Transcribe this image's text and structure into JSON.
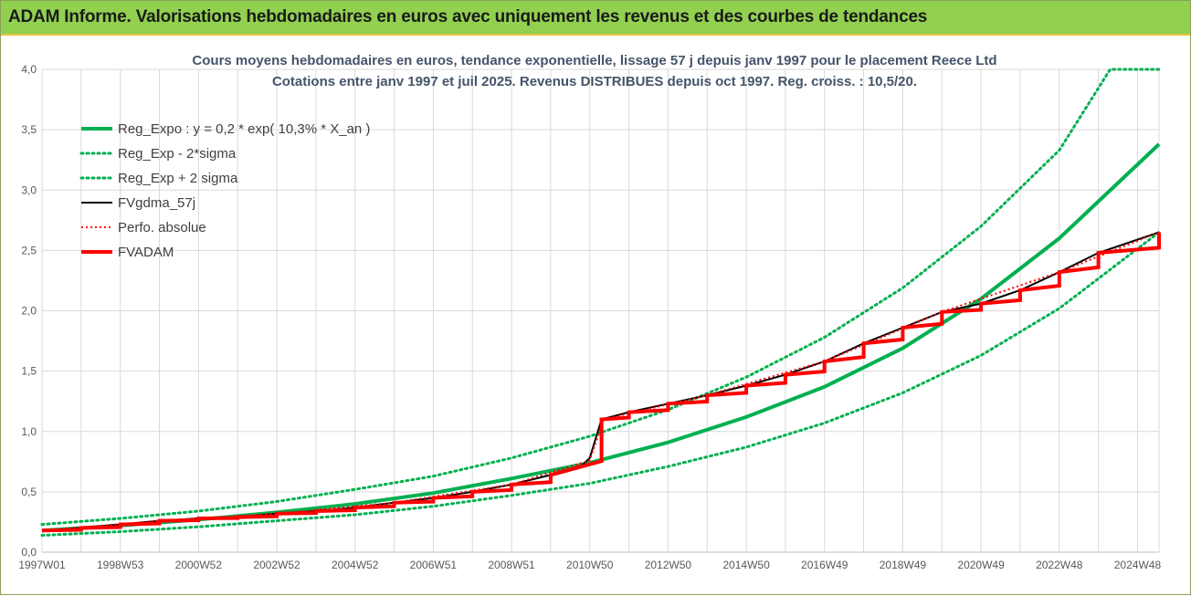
{
  "window": {
    "title": "ADAM Informe. Valorisations hebdomadaires en euros avec uniquement les revenus et des courbes de tendances"
  },
  "colors": {
    "titlebar": "#92d050",
    "green": "#00b050",
    "black": "#000000",
    "red": "#ff0000",
    "grid": "#d9d9d9"
  },
  "chart_data": {
    "type": "line",
    "title_lines": [
      "Cours moyens hebdomadaires en euros, tendance exponentielle, lissage 57 j depuis janv 1997 pour le placement Reece Ltd",
      "Cotations entre janv 1997 et juil 2025. Revenus DISTRIBUES depuis oct 1997. Reg. croiss. : 10,5/20."
    ],
    "x_tick_labels": [
      "1997W01",
      "1998W53",
      "2000W52",
      "2002W52",
      "2004W52",
      "2006W51",
      "2008W51",
      "2010W50",
      "2012W50",
      "2014W50",
      "2016W49",
      "2018W49",
      "2020W49",
      "2022W48",
      "2024W48"
    ],
    "y_tick_labels": [
      "0,0",
      "0,5",
      "1,0",
      "1,5",
      "2,0",
      "2,5",
      "3,0",
      "3,5",
      "4,0"
    ],
    "ylim": [
      0,
      4
    ],
    "xlim": [
      1997.0,
      2025.55
    ],
    "grid": true,
    "legend_position": "top-left",
    "series": [
      {
        "name": "Reg_Expo : y = 0,2 * exp( 10,3% *  X_an )",
        "style": "solid-thick-green",
        "x": [
          1997,
          1999,
          2001,
          2003,
          2005,
          2007,
          2009,
          2011,
          2013,
          2015,
          2017,
          2019,
          2021,
          2023,
          2025.55
        ],
        "values": [
          0.18,
          0.22,
          0.27,
          0.33,
          0.4,
          0.49,
          0.61,
          0.74,
          0.91,
          1.12,
          1.37,
          1.69,
          2.1,
          2.6,
          3.38
        ]
      },
      {
        "name": "Reg_Exp - 2*sigma",
        "style": "dotted-green",
        "x": [
          1997,
          1999,
          2001,
          2003,
          2005,
          2007,
          2009,
          2011,
          2013,
          2015,
          2017,
          2019,
          2021,
          2023,
          2025.55
        ],
        "values": [
          0.14,
          0.17,
          0.21,
          0.26,
          0.31,
          0.38,
          0.47,
          0.57,
          0.71,
          0.87,
          1.07,
          1.32,
          1.63,
          2.02,
          2.65
        ]
      },
      {
        "name": "Reg_Exp + 2 sigma",
        "style": "dotted-green",
        "x": [
          1997,
          1999,
          2001,
          2003,
          2005,
          2007,
          2009,
          2011,
          2013,
          2015,
          2017,
          2019,
          2021,
          2023,
          2024.3,
          2025.55
        ],
        "values": [
          0.23,
          0.28,
          0.34,
          0.42,
          0.52,
          0.63,
          0.78,
          0.96,
          1.18,
          1.45,
          1.78,
          2.19,
          2.7,
          3.33,
          4.0,
          4.0
        ]
      },
      {
        "name": "FVgdma_57j",
        "style": "solid-black",
        "x": [
          1997.0,
          1998.0,
          1999.0,
          2000.0,
          2001.0,
          2002.0,
          2003.0,
          2004.0,
          2005.0,
          2006.0,
          2007.0,
          2008.0,
          2009.0,
          2010.0,
          2010.8,
          2011.0,
          2011.3,
          2012.0,
          2013.0,
          2014.0,
          2015.0,
          2016.0,
          2017.0,
          2018.0,
          2019.0,
          2020.0,
          2021.0,
          2022.0,
          2023.0,
          2024.0,
          2025.55
        ],
        "values": [
          0.18,
          0.2,
          0.23,
          0.26,
          0.28,
          0.29,
          0.32,
          0.34,
          0.37,
          0.41,
          0.45,
          0.5,
          0.56,
          0.64,
          0.72,
          0.78,
          1.1,
          1.16,
          1.23,
          1.3,
          1.38,
          1.47,
          1.58,
          1.73,
          1.86,
          1.99,
          2.06,
          2.17,
          2.32,
          2.48,
          2.65
        ]
      },
      {
        "name": "Perfo. absolue",
        "style": "dotted-red",
        "x": [
          1997.0,
          2000.0,
          2003.0,
          2006.0,
          2009.0,
          2011.0,
          2011.35,
          2014.0,
          2017.0,
          2020.0,
          2023.0,
          2025.55
        ],
        "values": [
          0.18,
          0.26,
          0.32,
          0.41,
          0.56,
          0.76,
          1.1,
          1.3,
          1.58,
          1.99,
          2.32,
          2.65
        ]
      },
      {
        "name": "FVADAM",
        "style": "step-thick-red",
        "x": [
          1997.0,
          1998.0,
          1999.0,
          2000.0,
          2001.0,
          2002.0,
          2003.0,
          2004.0,
          2005.0,
          2006.0,
          2007.0,
          2008.0,
          2009.0,
          2010.0,
          2011.3,
          2012.0,
          2013.0,
          2014.0,
          2015.0,
          2016.0,
          2017.0,
          2018.0,
          2019.0,
          2020.0,
          2021.0,
          2022.0,
          2023.0,
          2024.0,
          2025.55
        ],
        "values": [
          0.18,
          0.2,
          0.23,
          0.26,
          0.28,
          0.29,
          0.32,
          0.34,
          0.37,
          0.41,
          0.45,
          0.5,
          0.56,
          0.64,
          1.1,
          1.16,
          1.23,
          1.3,
          1.38,
          1.47,
          1.58,
          1.73,
          1.86,
          1.99,
          2.06,
          2.17,
          2.32,
          2.48,
          2.65
        ]
      }
    ]
  }
}
